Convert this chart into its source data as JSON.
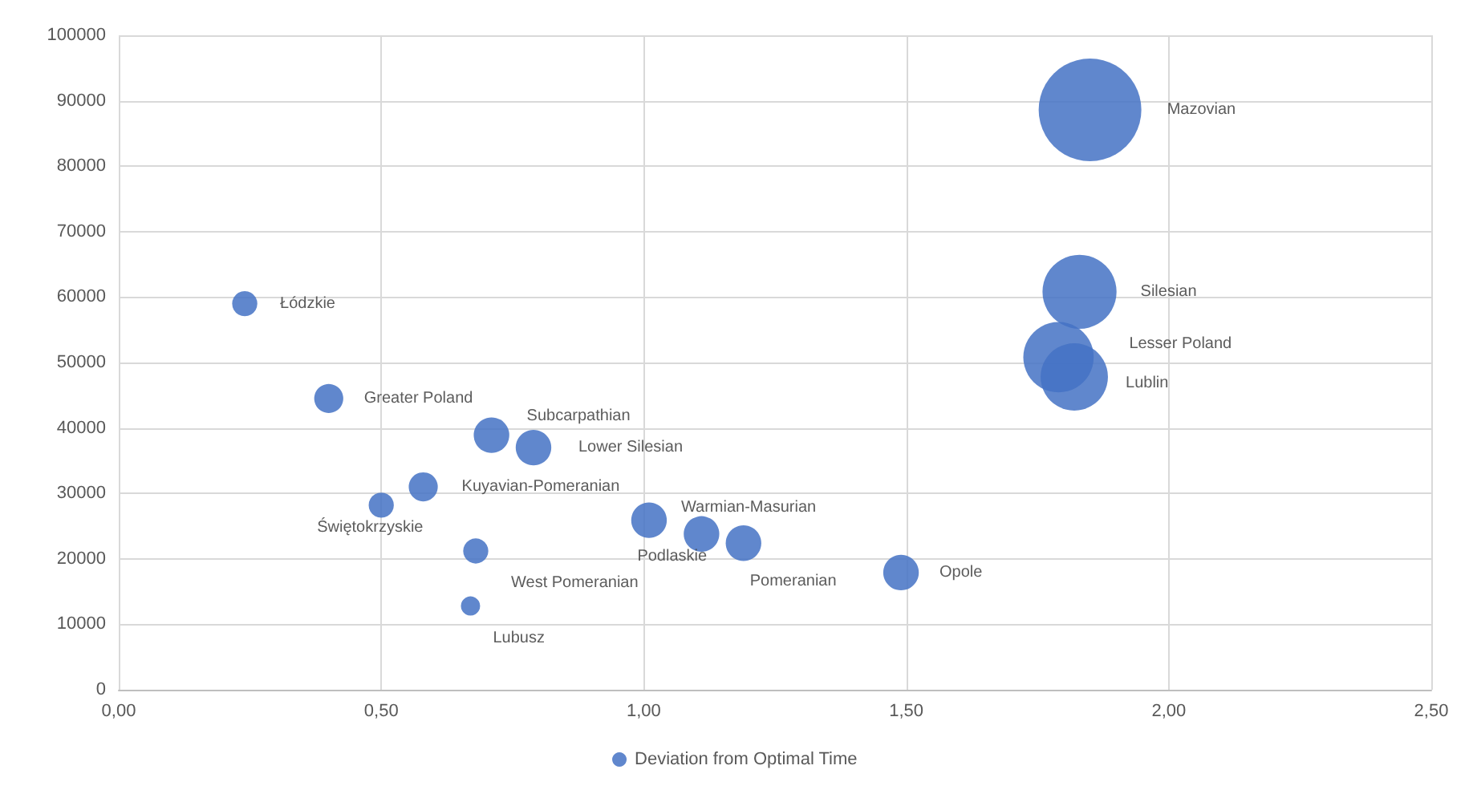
{
  "chart_data": {
    "type": "bubble",
    "x": [
      0.24,
      0.4,
      0.71,
      0.79,
      0.58,
      0.5,
      0.68,
      0.67,
      1.01,
      1.11,
      1.19,
      1.49,
      1.85,
      1.83,
      1.79,
      1.82
    ],
    "series": [
      {
        "name": "Deviation from Optimal Time",
        "color": "#4472c4",
        "values": [
          59000,
          44500,
          38900,
          37000,
          31000,
          28200,
          21200,
          12800,
          25900,
          23800,
          22400,
          17900,
          88600,
          60800,
          50800,
          47800
        ],
        "sizes": [
          0.06,
          0.08,
          0.12,
          0.12,
          0.08,
          0.06,
          0.06,
          0.035,
          0.12,
          0.12,
          0.12,
          0.12,
          1,
          0.52,
          0.47,
          0.43
        ]
      }
    ],
    "annotations": [
      "Łódzkie",
      "Greater Poland",
      "Subcarpathian",
      "Lower Silesian",
      "Kuyavian-Pomeranian",
      "Świętokrzyskie",
      "West Pomeranian",
      "Lubusz",
      "Warmian-Masurian",
      "Podlaskie",
      "Pomeranian",
      "Opole",
      "Mazovian",
      "Silesian",
      "Lesser Poland",
      "Lublin"
    ],
    "xlim": [
      0,
      2.5
    ],
    "xticks": [
      {
        "value": 0,
        "label": "0,00"
      },
      {
        "value": 0.5,
        "label": "0,50"
      },
      {
        "value": 1,
        "label": "1,00"
      },
      {
        "value": 1.5,
        "label": "1,50"
      },
      {
        "value": 2,
        "label": "2,00"
      },
      {
        "value": 2.5,
        "label": "2,50"
      }
    ],
    "ylim": [
      0,
      100000
    ],
    "yticks": [
      0,
      10000,
      20000,
      30000,
      40000,
      50000,
      60000,
      70000,
      80000,
      90000,
      100000
    ],
    "grid": true,
    "legend": "bottom",
    "marker": "circle"
  }
}
